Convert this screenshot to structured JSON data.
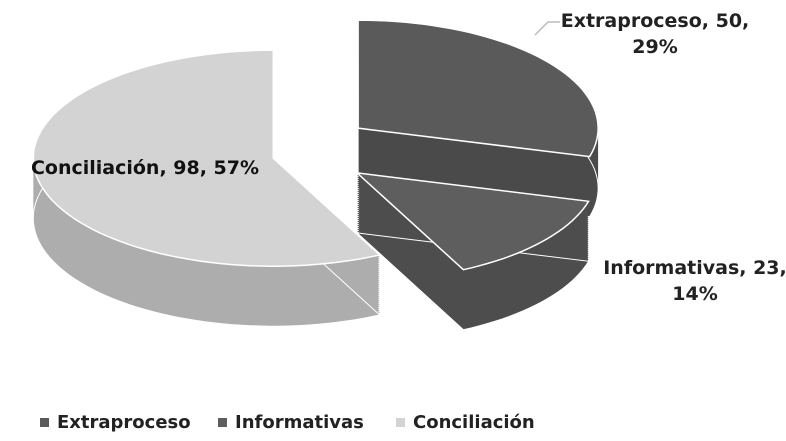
{
  "chart_data": {
    "type": "pie3d",
    "categories": [
      "Extraproceso",
      "Informativas",
      "Conciliación"
    ],
    "values": [
      50,
      23,
      98
    ],
    "value_labels": [
      "Extraproceso, 50, 29%",
      "Informativas, 23, 14%",
      "Conciliación, 98, 57%"
    ],
    "colors": [
      "#5a5a5a",
      "#5e5e5e",
      "#d3d3d3"
    ],
    "legend": "bottom"
  }
}
